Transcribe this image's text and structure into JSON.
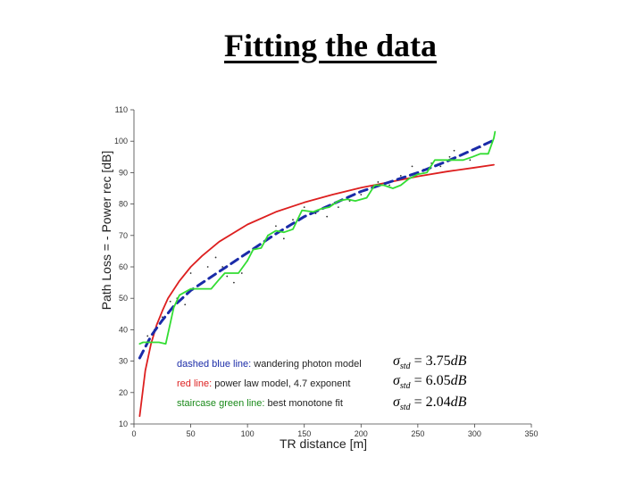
{
  "slide": {
    "title": "Fitting the data"
  },
  "chart_data": {
    "type": "line",
    "xlabel": "TR distance [m]",
    "ylabel": "Path Loss = - Power rec [dB]",
    "xlim": [
      0,
      350
    ],
    "ylim": [
      10,
      110
    ],
    "xticks": [
      0,
      50,
      100,
      150,
      200,
      250,
      300,
      350
    ],
    "yticks": [
      10,
      20,
      30,
      40,
      50,
      60,
      70,
      80,
      90,
      100,
      110
    ],
    "grid": false,
    "series": [
      {
        "name": "red line",
        "description": "power law model, 4.7 exponent",
        "color": "#dd1f1f",
        "style": "solid",
        "x": [
          5,
          10,
          15,
          20,
          25,
          30,
          40,
          50,
          60,
          75,
          100,
          125,
          150,
          175,
          200,
          225,
          250,
          275,
          300,
          317
        ],
        "y": [
          12.5,
          27,
          35.5,
          41.5,
          46,
          50,
          55.5,
          60,
          63.5,
          68,
          73.5,
          77.5,
          80.5,
          83,
          85.2,
          87,
          88.8,
          90.3,
          91.6,
          92.5
        ]
      },
      {
        "name": "dashed blue line",
        "description": "wandering photon model",
        "color": "#1a2ba8",
        "style": "dashed",
        "x": [
          5,
          15,
          25,
          35,
          50,
          75,
          100,
          125,
          150,
          175,
          200,
          225,
          250,
          275,
          300,
          315
        ],
        "y": [
          31,
          38,
          43,
          47.5,
          52.5,
          58.5,
          64.5,
          70.5,
          76,
          80,
          84,
          87,
          90,
          93.5,
          97.5,
          100
        ]
      },
      {
        "name": "staircase green line",
        "description": "best monotone fit",
        "color": "#33dd33",
        "style": "solid",
        "x": [
          5,
          8,
          15,
          22,
          28,
          35,
          40,
          45,
          50,
          55,
          60,
          68,
          75,
          80,
          85,
          92,
          100,
          105,
          112,
          118,
          125,
          132,
          140,
          148,
          158,
          165,
          172,
          180,
          188,
          195,
          205,
          212,
          220,
          228,
          235,
          242,
          250,
          258,
          265,
          272,
          280,
          290,
          298,
          305,
          312,
          317,
          318
        ],
        "y": [
          35.5,
          36,
          36,
          36,
          35.5,
          47,
          51,
          52,
          53,
          53,
          53,
          53,
          56,
          58,
          58,
          58,
          62,
          65.5,
          66,
          70,
          71.5,
          71,
          72,
          78,
          77.5,
          78.5,
          79,
          81,
          81.5,
          81,
          82,
          86,
          86,
          85,
          86,
          88,
          89.5,
          90,
          94,
          94,
          94,
          94,
          95,
          96,
          96,
          101,
          103
        ]
      }
    ],
    "scatter": {
      "x": [
        12,
        18,
        25,
        32,
        38,
        45,
        50,
        55,
        60,
        65,
        72,
        78,
        82,
        88,
        95,
        100,
        110,
        118,
        125,
        132,
        140,
        150,
        160,
        170,
        175,
        180,
        190,
        200,
        210,
        215,
        225,
        235,
        240,
        245,
        255,
        262,
        270,
        278,
        282,
        290,
        296,
        305,
        310
      ],
      "y": [
        38,
        40,
        44,
        49,
        50,
        48,
        58,
        53,
        55,
        60,
        63,
        60,
        57,
        55,
        58,
        62,
        67,
        70,
        73,
        69,
        75,
        79,
        77,
        76,
        80,
        79,
        81,
        83,
        85,
        87,
        86,
        89,
        88,
        92,
        91,
        93,
        92,
        95,
        97,
        96,
        94,
        98,
        96
      ]
    },
    "annotations": [
      {
        "sigma_sub": "std",
        "value": "3.75",
        "unit": "dB"
      },
      {
        "sigma_sub": "std",
        "value": "6.05",
        "unit": "dB"
      },
      {
        "sigma_sub": "std",
        "value": "2.04",
        "unit": "dB"
      }
    ]
  }
}
